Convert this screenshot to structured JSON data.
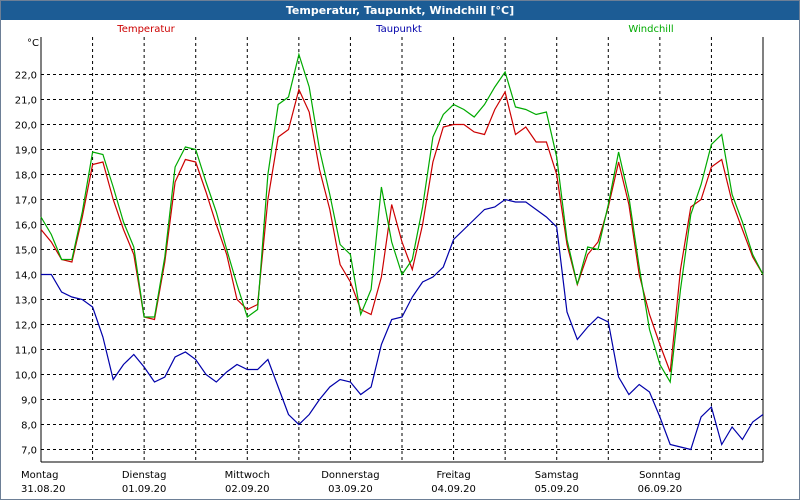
{
  "window": {
    "title": "Temperatur, Taupunkt, Windchill [°C]"
  },
  "chart_data": {
    "type": "line",
    "title": "Temperatur, Taupunkt, Windchill [°C]",
    "ylabel": "°C",
    "ylim": [
      6.5,
      23.5
    ],
    "xlim": [
      0,
      7
    ],
    "grid": true,
    "legend_position": "top",
    "y_ticks": [
      "7,0",
      "8,0",
      "9,0",
      "10,0",
      "11,0",
      "12,0",
      "13,0",
      "14,0",
      "15,0",
      "16,0",
      "17,0",
      "18,0",
      "19,0",
      "20,0",
      "21,0",
      "22,0"
    ],
    "x_ticks": [
      {
        "day": "Montag",
        "date": "31.08.20"
      },
      {
        "day": "Dienstag",
        "date": "01.09.20"
      },
      {
        "day": "Mittwoch",
        "date": "02.09.20"
      },
      {
        "day": "Donnerstag",
        "date": "03.09.20"
      },
      {
        "day": "Freitag",
        "date": "04.09.20"
      },
      {
        "day": "Samstag",
        "date": "05.09.20"
      },
      {
        "day": "Sonntag",
        "date": "06.09.20"
      }
    ],
    "x": [
      0,
      0.1,
      0.2,
      0.3,
      0.4,
      0.5,
      0.6,
      0.7,
      0.8,
      0.9,
      1,
      1.1,
      1.2,
      1.3,
      1.4,
      1.5,
      1.6,
      1.7,
      1.8,
      1.9,
      2,
      2.1,
      2.2,
      2.3,
      2.4,
      2.5,
      2.6,
      2.7,
      2.8,
      2.9,
      3,
      3.1,
      3.2,
      3.3,
      3.4,
      3.5,
      3.6,
      3.7,
      3.8,
      3.9,
      4,
      4.1,
      4.2,
      4.3,
      4.4,
      4.5,
      4.6,
      4.7,
      4.8,
      4.9,
      5,
      5.1,
      5.2,
      5.3,
      5.4,
      5.5,
      5.6,
      5.7,
      5.8,
      5.9,
      6,
      6.1,
      6.2,
      6.3,
      6.4,
      6.5,
      6.6,
      6.7,
      6.8,
      6.9,
      7
    ],
    "series": [
      {
        "name": "Temperatur",
        "color": "#cc0000",
        "values": [
          15.8,
          15.3,
          14.6,
          14.5,
          16.3,
          18.4,
          18.5,
          17.0,
          15.8,
          14.8,
          12.3,
          12.2,
          14.5,
          17.7,
          18.6,
          18.5,
          17.3,
          16.0,
          14.8,
          13.0,
          12.6,
          12.8,
          17.0,
          19.5,
          19.8,
          21.4,
          20.5,
          18.2,
          16.6,
          14.4,
          13.7,
          12.6,
          12.4,
          13.9,
          16.8,
          15.3,
          14.2,
          16.0,
          18.5,
          19.9,
          20.0,
          20.0,
          19.7,
          19.6,
          20.6,
          21.3,
          19.6,
          19.9,
          19.3,
          19.3,
          18.0,
          15.2,
          13.6,
          14.8,
          15.3,
          16.7,
          18.5,
          16.8,
          14.0,
          12.4,
          11.2,
          10.1,
          14.2,
          16.7,
          17.0,
          18.3,
          18.6,
          16.9,
          15.8,
          14.7,
          14.0
        ]
      },
      {
        "name": "Taupunkt",
        "color": "#0000aa",
        "values": [
          14.0,
          14.0,
          13.3,
          13.1,
          13.0,
          12.7,
          11.5,
          9.8,
          10.4,
          10.8,
          10.3,
          9.7,
          9.9,
          10.7,
          10.9,
          10.6,
          10.0,
          9.7,
          10.1,
          10.4,
          10.2,
          10.2,
          10.6,
          9.5,
          8.4,
          8.0,
          8.4,
          9.0,
          9.5,
          9.8,
          9.7,
          9.2,
          9.5,
          11.2,
          12.2,
          12.3,
          13.1,
          13.7,
          13.9,
          14.3,
          15.4,
          15.8,
          16.2,
          16.6,
          16.7,
          17.0,
          16.9,
          16.9,
          16.6,
          16.3,
          15.9,
          12.5,
          11.4,
          11.9,
          12.3,
          12.1,
          9.9,
          9.2,
          9.6,
          9.3,
          8.3,
          7.2,
          7.1,
          7.0,
          8.3,
          8.7,
          7.2,
          7.9,
          7.4,
          8.1,
          8.4
        ]
      },
      {
        "name": "Windchill",
        "color": "#00aa00",
        "values": [
          16.3,
          15.6,
          14.6,
          14.6,
          16.5,
          18.9,
          18.8,
          17.5,
          16.1,
          15.1,
          12.3,
          12.3,
          14.7,
          18.3,
          19.1,
          19.0,
          17.7,
          16.5,
          15.0,
          13.6,
          12.3,
          12.6,
          18.0,
          20.8,
          21.1,
          22.8,
          21.5,
          19.0,
          17.2,
          15.2,
          14.8,
          12.4,
          13.4,
          17.5,
          15.3,
          14.0,
          14.6,
          16.7,
          19.5,
          20.4,
          20.8,
          20.6,
          20.3,
          20.8,
          21.5,
          22.1,
          20.7,
          20.6,
          20.4,
          20.5,
          18.7,
          15.4,
          13.6,
          15.1,
          15.0,
          16.8,
          18.9,
          17.1,
          14.3,
          11.8,
          10.4,
          9.7,
          13.4,
          16.4,
          17.6,
          19.2,
          19.6,
          17.2,
          16.1,
          14.8,
          14.0
        ]
      }
    ]
  }
}
